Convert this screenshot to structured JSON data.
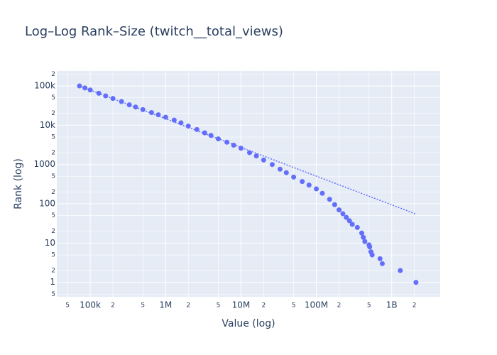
{
  "chart_data": {
    "type": "scatter",
    "title": "Log–Log Rank–Size (twitch__total_views)",
    "x_label": "Value (log)",
    "y_label": "Rank (log)",
    "color": "#636efa",
    "x": [
      72000,
      85000,
      100000,
      130000,
      160000,
      200000,
      260000,
      330000,
      400000,
      500000,
      650000,
      800000,
      1000000,
      1300000,
      1600000,
      2000000,
      2600000,
      3300000,
      4000000,
      5000000,
      6500000,
      8000000,
      10000000,
      13000000,
      16000000,
      20000000,
      26000000,
      33000000,
      40000000,
      50000000,
      65000000,
      80000000,
      100000000,
      120000000,
      150000000,
      175000000,
      200000000,
      225000000,
      250000000,
      275000000,
      300000000,
      350000000,
      400000000,
      420000000,
      440000000,
      500000000,
      510000000,
      530000000,
      550000000,
      700000000,
      750000000,
      1300000000,
      2100000000
    ],
    "values": [
      100000,
      89000,
      79000,
      65000,
      56000,
      48000,
      40000,
      33000,
      29000,
      25000,
      21000,
      18500,
      16000,
      13500,
      11500,
      9500,
      7800,
      6400,
      5500,
      4500,
      3700,
      3100,
      2600,
      2000,
      1650,
      1300,
      1000,
      760,
      620,
      480,
      370,
      300,
      240,
      185,
      130,
      95,
      70,
      56,
      45,
      37,
      30,
      25,
      18,
      14,
      11,
      9,
      8,
      6,
      5,
      4,
      3,
      2,
      1
    ],
    "fit": {
      "x": [
        72000,
        2040000000
      ],
      "values": [
        100000,
        56
      ],
      "color": "#636efa",
      "dash": "dot"
    },
    "log_x": true,
    "log_y": true,
    "grid": true,
    "xlim": [
      36000,
      4400000000
    ],
    "ylim": [
      0.43,
      240000
    ],
    "xticks": [
      {
        "value": 50000,
        "label": "5"
      },
      {
        "value": 100000,
        "label": "100k"
      },
      {
        "value": 200000,
        "label": "2"
      },
      {
        "value": 500000,
        "label": "5"
      },
      {
        "value": 1000000,
        "label": "1M"
      },
      {
        "value": 2000000,
        "label": "2"
      },
      {
        "value": 5000000,
        "label": "5"
      },
      {
        "value": 10000000,
        "label": "10M"
      },
      {
        "value": 20000000,
        "label": "2"
      },
      {
        "value": 50000000,
        "label": "5"
      },
      {
        "value": 100000000,
        "label": "100M"
      },
      {
        "value": 200000000,
        "label": "2"
      },
      {
        "value": 500000000,
        "label": "5"
      },
      {
        "value": 1000000000,
        "label": "1B"
      },
      {
        "value": 2000000000,
        "label": "2"
      }
    ],
    "yticks": [
      {
        "value": 0.5,
        "label": "5"
      },
      1,
      2,
      5,
      10,
      {
        "value": 20,
        "label": "2"
      },
      {
        "value": 50,
        "label": "5"
      },
      100,
      {
        "value": 200,
        "label": "2"
      },
      {
        "value": 500,
        "label": "5"
      },
      1000,
      {
        "value": 2000,
        "label": "2"
      },
      {
        "value": 5000,
        "label": "5"
      },
      {
        "value": 10000,
        "label": "10k"
      },
      {
        "value": 20000,
        "label": "2"
      },
      {
        "value": 50000,
        "label": "5"
      },
      {
        "value": 100000,
        "label": "100k"
      },
      {
        "value": 200000,
        "label": "2"
      }
    ]
  }
}
